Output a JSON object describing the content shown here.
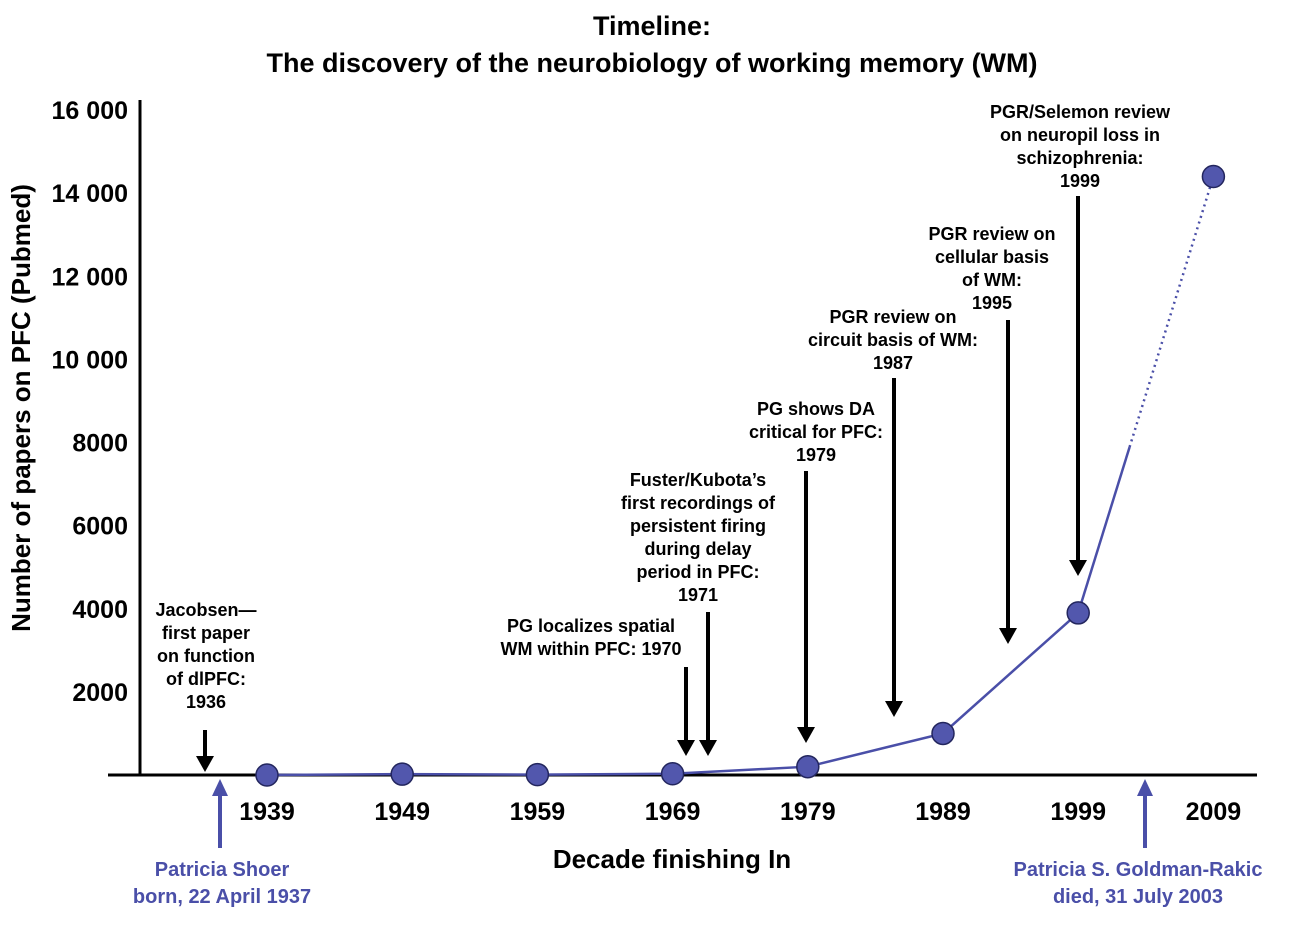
{
  "chart_data": {
    "type": "line",
    "title_lines": [
      "Timeline:",
      "The discovery of the neurobiology of working memory (WM)"
    ],
    "xlabel": "Decade finishing In",
    "ylabel": "Number of papers on PFC (Pubmed)",
    "categories": [
      "1939",
      "1949",
      "1959",
      "1969",
      "1979",
      "1989",
      "1999",
      "2009"
    ],
    "values": [
      0,
      20,
      10,
      30,
      200,
      1000,
      3900,
      14400
    ],
    "y_ticks": [
      "2000",
      "4000",
      "6000",
      "8000",
      "10 000",
      "12 000",
      "14 000",
      "16 000"
    ],
    "ylim": [
      0,
      16000
    ],
    "grid": false,
    "colors": {
      "series": "#4a4fa8",
      "marker_fill": "#5257ad",
      "marker_stroke": "#23265e",
      "person": "#4a4fa8",
      "axis": "#000000"
    },
    "annotations": [
      {
        "year": 1936,
        "lines": [
          "Jacobsen—",
          "first paper",
          "on function",
          "of dlPFC:",
          "1936"
        ]
      },
      {
        "year": 1970,
        "lines": [
          "PG localizes spatial",
          "WM within PFC: 1970"
        ]
      },
      {
        "year": 1971,
        "lines": [
          "Fuster/Kubota’s",
          "first recordings of",
          "persistent firing",
          "during delay",
          "period in PFC:",
          "1971"
        ]
      },
      {
        "year": 1979,
        "lines": [
          "PG shows DA",
          "critical for PFC:",
          "1979"
        ]
      },
      {
        "year": 1987,
        "lines": [
          "PGR review on",
          "circuit basis of WM:",
          "1987"
        ]
      },
      {
        "year": 1995,
        "lines": [
          "PGR review on",
          "cellular basis",
          "of WM:",
          "1995"
        ]
      },
      {
        "year": 1999,
        "lines": [
          "PGR/Selemon review",
          "on neuropil loss in",
          "schizophrenia:",
          "1999"
        ]
      }
    ],
    "person_events": [
      {
        "year": 1937.3,
        "lines": [
          "Patricia Shoer",
          "born, 22 April 1937"
        ]
      },
      {
        "year": 2003.6,
        "lines": [
          "Patricia S. Goldman-Rakic",
          "died, 31 July 2003"
        ]
      }
    ]
  }
}
